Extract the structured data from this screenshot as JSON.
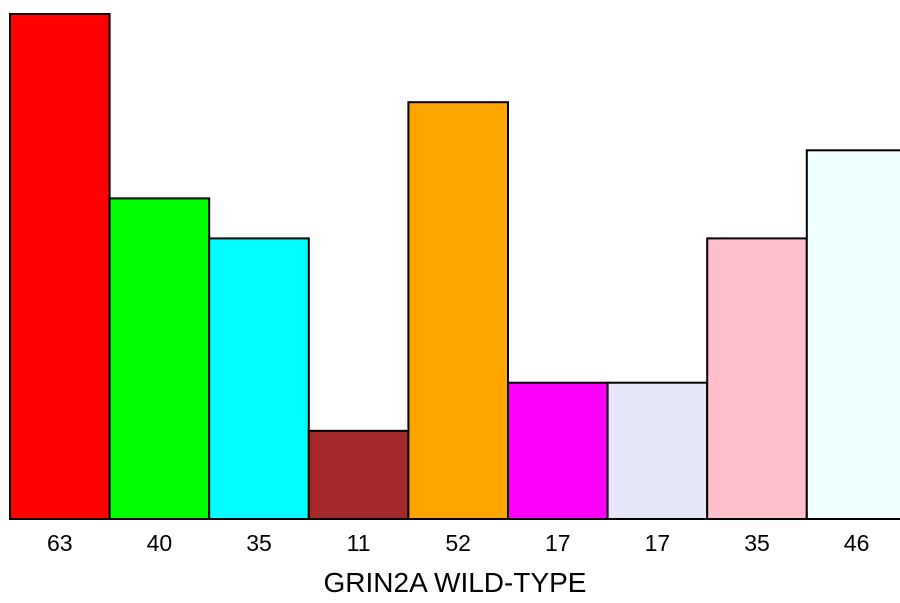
{
  "chart_data": {
    "type": "bar",
    "categories": [
      "63",
      "40",
      "35",
      "11",
      "52",
      "17",
      "17",
      "35",
      "46"
    ],
    "values": [
      63,
      40,
      35,
      11,
      52,
      17,
      17,
      35,
      46
    ],
    "colors": [
      "#ff0000",
      "#00ff00",
      "#00ffff",
      "#a52a2a",
      "#ffa500",
      "#ff00ff",
      "#e6e6fa",
      "#ffc0cb",
      "#f0ffff"
    ],
    "xlabel": "GRIN2A WILD-TYPE",
    "ylim": [
      0,
      63
    ],
    "grid": false
  }
}
